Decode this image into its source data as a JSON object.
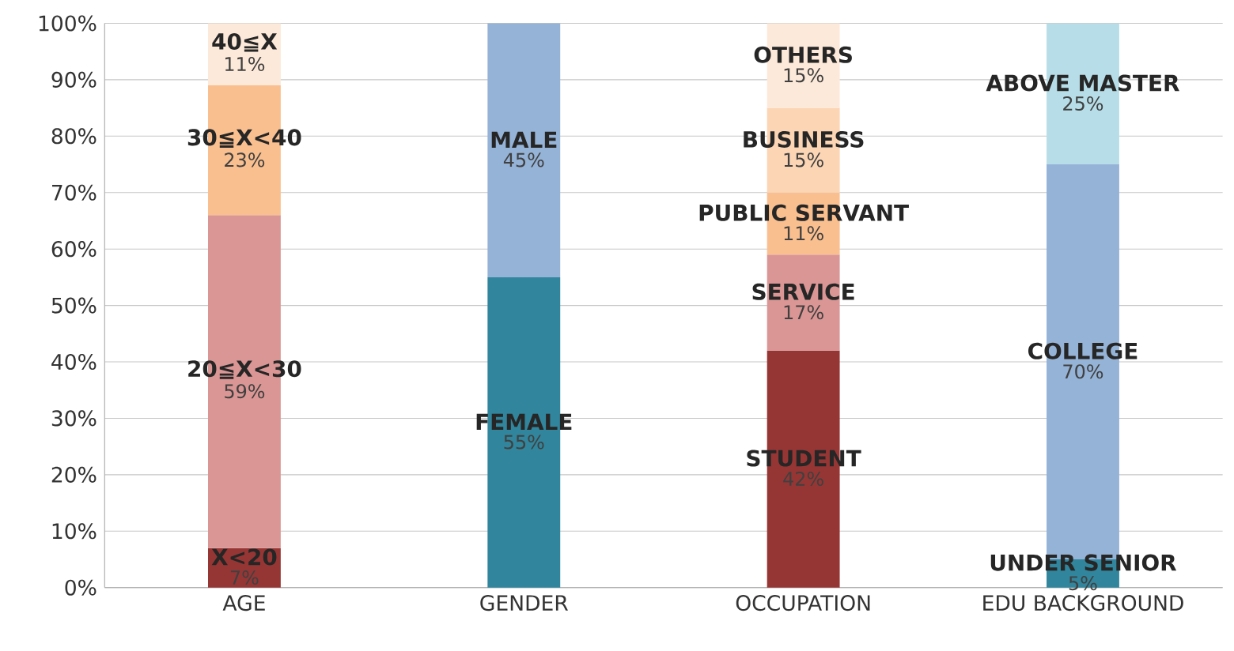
{
  "chart_data": {
    "type": "bar",
    "stacked": true,
    "categories": [
      "AGE",
      "GENDER",
      "OCCUPATION",
      "EDU BACKGROUND"
    ],
    "series": [
      {
        "values": [
          7,
          55,
          42,
          5
        ],
        "colors": [
          "#963634",
          "#31859c",
          "#963634",
          "#31859c"
        ],
        "value_labels": [
          "7%",
          "55%",
          "42%",
          "5%"
        ]
      },
      {
        "values": [
          59,
          45,
          17,
          70
        ],
        "colors": [
          "#da9694",
          "#95b3d7",
          "#da9694",
          "#95b3d7"
        ],
        "value_labels": [
          "59%",
          "45%",
          "17%",
          "70%"
        ]
      },
      {
        "values": [
          23,
          null,
          11,
          25
        ],
        "colors": [
          "#fabf8f",
          null,
          "#fabf8f",
          "#b7dee8"
        ],
        "value_labels": [
          "23%",
          null,
          "11%",
          "25%"
        ]
      },
      {
        "values": [
          11,
          null,
          15,
          null
        ],
        "colors": [
          "#fde9d9",
          null,
          "#fcd5b4",
          null
        ],
        "value_labels": [
          "11%",
          null,
          "15%",
          null
        ]
      },
      {
        "values": [
          null,
          null,
          15,
          null
        ],
        "colors": [
          null,
          null,
          "#fde9d9",
          null
        ],
        "value_labels": [
          null,
          null,
          "15%",
          null
        ]
      }
    ],
    "annotations": [
      "X<20",
      "20≦X<30",
      "30≦X<40",
      "40≦X",
      "FEMALE",
      "MALE",
      "STUDENT",
      "SERVICE",
      "PUBLIC SERVANT",
      "BUSINESS",
      "OTHERS",
      "UNDER SENIOR",
      "COLLEGE",
      "ABOVE MASTER"
    ],
    "ylim": [
      0,
      100
    ],
    "yticks": [
      {
        "value": 0,
        "label": "0%"
      },
      {
        "value": 10,
        "label": "10%"
      },
      {
        "value": 20,
        "label": "20%"
      },
      {
        "value": 30,
        "label": "30%"
      },
      {
        "value": 40,
        "label": "40%"
      },
      {
        "value": 50,
        "label": "50%"
      },
      {
        "value": 60,
        "label": "60%"
      },
      {
        "value": 70,
        "label": "70%"
      },
      {
        "value": 80,
        "label": "80%"
      },
      {
        "value": 90,
        "label": "90%"
      },
      {
        "value": 100,
        "label": "100%"
      }
    ],
    "grid": "y"
  }
}
